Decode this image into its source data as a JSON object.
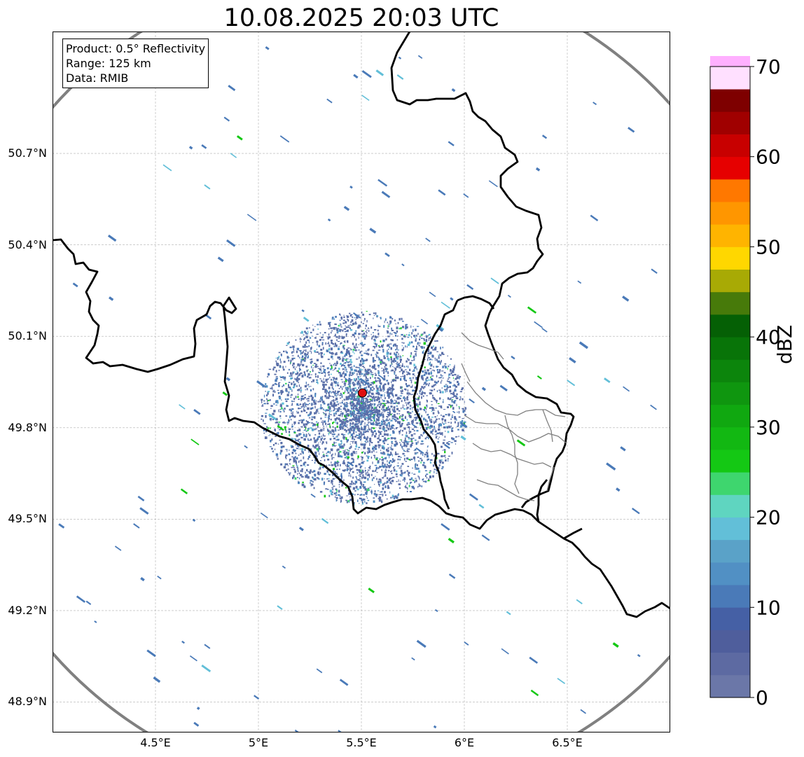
{
  "title": "10.08.2025 20:03 UTC",
  "info_box": {
    "product": "Product: 0.5° Reflectivity",
    "range": "Range: 125 km",
    "data_source": "Data: RMIB"
  },
  "map": {
    "lon_range": [
      4.0,
      7.0
    ],
    "lat_range": [
      48.8,
      51.1
    ],
    "lon_ticks": [
      {
        "value": 4.5,
        "label": "4.5°E"
      },
      {
        "value": 5.0,
        "label": "5°E"
      },
      {
        "value": 5.5,
        "label": "5.5°E"
      },
      {
        "value": 6.0,
        "label": "6°E"
      },
      {
        "value": 6.5,
        "label": "6.5°E"
      }
    ],
    "lat_ticks": [
      {
        "value": 48.9,
        "label": "48.9°N"
      },
      {
        "value": 49.2,
        "label": "49.2°N"
      },
      {
        "value": 49.5,
        "label": "49.5°N"
      },
      {
        "value": 49.8,
        "label": "49.8°N"
      },
      {
        "value": 50.1,
        "label": "50.1°N"
      },
      {
        "value": 50.4,
        "label": "50.4°N"
      },
      {
        "value": 50.7,
        "label": "50.7°N"
      }
    ],
    "grid": true,
    "radar_site": {
      "lon": 5.505,
      "lat": 49.914
    },
    "range_ring_color": "#808080",
    "radar_marker_color": "#e01010"
  },
  "colorbar": {
    "label": "dBZ",
    "ticks": [
      {
        "value": 0,
        "label": "0"
      },
      {
        "value": 10,
        "label": "10"
      },
      {
        "value": 20,
        "label": "20"
      },
      {
        "value": 30,
        "label": "30"
      },
      {
        "value": 40,
        "label": "40"
      },
      {
        "value": 50,
        "label": "50"
      },
      {
        "value": 60,
        "label": "60"
      },
      {
        "value": 70,
        "label": "70"
      }
    ],
    "min": 0,
    "max": 70,
    "step": 2.5,
    "colors": [
      "#6b77a8",
      "#5d6aa2",
      "#4f5e9c",
      "#4560a5",
      "#4a7ab8",
      "#5190c4",
      "#5aa2c8",
      "#62bfd8",
      "#5fd5c0",
      "#3ed66e",
      "#14c814",
      "#12b812",
      "#10a810",
      "#0f960f",
      "#0c850c",
      "#087408",
      "#056005",
      "#477a0a",
      "#a8aa05",
      "#ffd700",
      "#ffb400",
      "#ff9600",
      "#ff7800",
      "#e60000",
      "#c80000",
      "#a00000",
      "#7e0000",
      "#ffe0ff",
      "#ffb0ff",
      "#ff70ff",
      "#ee30ee"
    ]
  }
}
